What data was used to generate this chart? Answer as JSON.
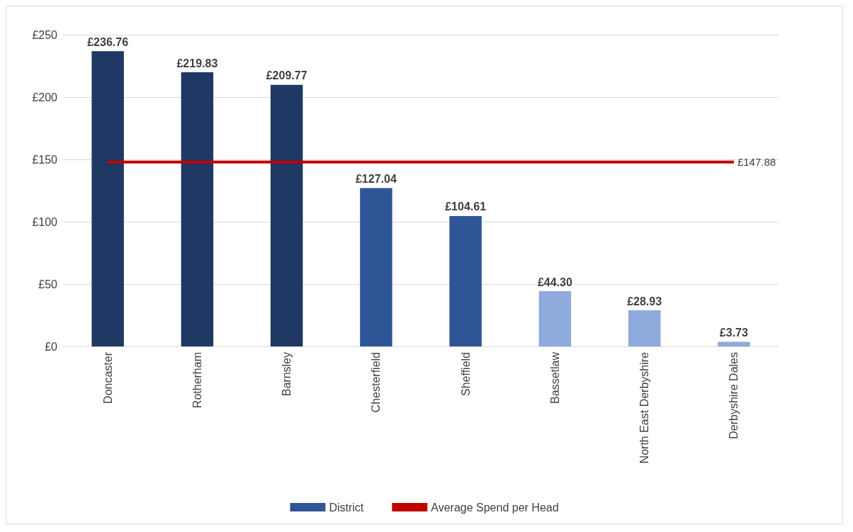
{
  "chart_data": {
    "type": "bar",
    "categories": [
      "Doncaster",
      "Rotherham",
      "Barnsley",
      "Chesterfield",
      "Sheffield",
      "Bassetlaw",
      "North East Derbyshire",
      "Derbyshire Dales"
    ],
    "series": [
      {
        "name": "District",
        "color": "#2f5597",
        "colors": [
          "#1f3864",
          "#1f3864",
          "#1f3864",
          "#2f5597",
          "#2f5597",
          "#8faadc",
          "#8faadc",
          "#8faadc"
        ],
        "values": [
          236.76,
          219.83,
          209.77,
          127.04,
          104.61,
          44.3,
          28.93,
          3.73
        ],
        "value_labels": [
          "£236.76",
          "£219.83",
          "£209.77",
          "£127.04",
          "£104.61",
          "£44.30",
          "£28.93",
          "£3.73"
        ]
      },
      {
        "name": "Average Spend per Head",
        "type": "line",
        "color": "#c00000",
        "values": [
          147.88,
          147.88,
          147.88,
          147.88,
          147.88,
          147.88,
          147.88,
          147.88
        ],
        "value_labels": [
          null,
          null,
          null,
          null,
          null,
          null,
          null,
          "£147.88"
        ]
      }
    ],
    "ylim": [
      0,
      250
    ],
    "yticks": [
      {
        "value": 0,
        "label": "£0"
      },
      {
        "value": 50,
        "label": "£50"
      },
      {
        "value": 100,
        "label": "£100"
      },
      {
        "value": 150,
        "label": "£150"
      },
      {
        "value": 200,
        "label": "£200"
      },
      {
        "value": 250,
        "label": "£250"
      }
    ],
    "grid": "y",
    "legend": "bottom",
    "marker": "none"
  }
}
